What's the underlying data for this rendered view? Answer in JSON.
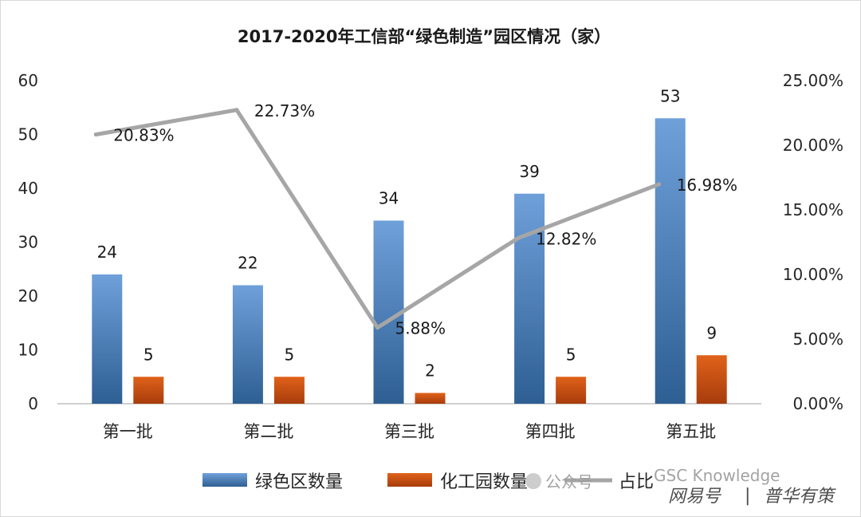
{
  "chart_data": {
    "type": "bar",
    "title": "2017-2020年工信部“绿色制造”园区情况（家）",
    "categories": [
      "第一批",
      "第二批",
      "第三批",
      "第四批",
      "第五批"
    ],
    "series": [
      {
        "name": "绿色区数量",
        "type": "bar",
        "axis": "left",
        "color": "#4f81bd",
        "values": [
          24,
          22,
          34,
          39,
          53
        ]
      },
      {
        "name": "化工园数量",
        "type": "bar",
        "axis": "left",
        "color": "#c0504d",
        "values": [
          5,
          5,
          2,
          5,
          9
        ]
      },
      {
        "name": "占比",
        "type": "line",
        "axis": "right",
        "color": "#a6a6a6",
        "values": [
          20.83,
          22.73,
          5.88,
          12.82,
          16.98
        ]
      }
    ],
    "point_labels": [
      "20.83%",
      "22.73%",
      "5.88%",
      "12.82%",
      "16.98%"
    ],
    "ylim": [
      0,
      60
    ],
    "yticks": [
      "0",
      "10",
      "20",
      "30",
      "40",
      "50",
      "60"
    ],
    "y2lim": [
      0,
      25
    ],
    "y2ticks": [
      "0.00%",
      "5.00%",
      "10.00%",
      "15.00%",
      "20.00%",
      "25.00%"
    ],
    "legend_position": "bottom"
  },
  "watermark": {
    "wechat_text": "公众号",
    "english_text": "GSC Knowledge",
    "source": "网易号",
    "separator": "|",
    "author": "普华有策"
  }
}
